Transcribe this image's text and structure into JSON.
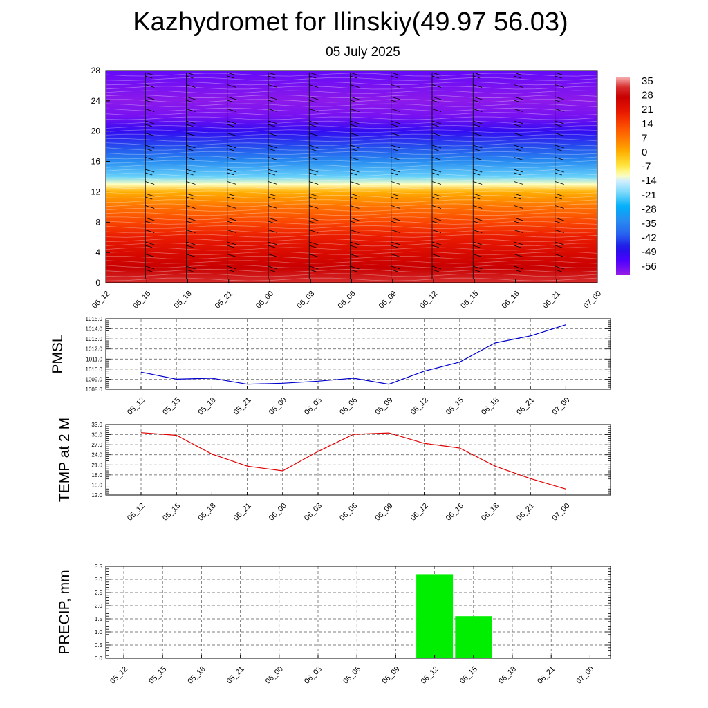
{
  "title": "Kazhydromet for Ilinskiy(49.97 56.03)",
  "subtitle": "05 July 2025",
  "time_labels": [
    "05_12",
    "05_15",
    "05_18",
    "05_21",
    "06_00",
    "06_03",
    "06_06",
    "06_09",
    "06_12",
    "06_15",
    "06_18",
    "06_21",
    "07_00"
  ],
  "colors": {
    "pmsl_line": "#0000cc",
    "temp_line": "#e00000",
    "precip_bar": "#00ee00",
    "grid": "#555555"
  },
  "chart_data": [
    {
      "id": "cross_section",
      "type": "heatmap",
      "title": "",
      "x": [
        "05_12",
        "05_15",
        "05_18",
        "05_21",
        "06_00",
        "06_03",
        "06_06",
        "06_09",
        "06_12",
        "06_15",
        "06_18",
        "06_21",
        "07_00"
      ],
      "yticks": [
        "0",
        "4",
        "8",
        "12",
        "16",
        "20",
        "24",
        "28"
      ],
      "ylim": [
        0,
        28
      ],
      "colorbar": {
        "labels": [
          "35",
          "28",
          "21",
          "14",
          "7",
          "0",
          "-7",
          "-14",
          "-21",
          "-28",
          "-35",
          "-42",
          "-49",
          "-56"
        ],
        "range": [
          -63,
          38
        ]
      },
      "temperature_profile": [
        {
          "y": 0,
          "value": 33
        },
        {
          "y": 2,
          "value": 28
        },
        {
          "y": 4,
          "value": 24
        },
        {
          "y": 6,
          "value": 20
        },
        {
          "y": 8,
          "value": 14
        },
        {
          "y": 10,
          "value": 8
        },
        {
          "y": 12,
          "value": 0
        },
        {
          "y": 13,
          "value": -12
        },
        {
          "y": 14,
          "value": -22
        },
        {
          "y": 16,
          "value": -35
        },
        {
          "y": 18,
          "value": -44
        },
        {
          "y": 20,
          "value": -52
        },
        {
          "y": 22,
          "value": -60
        },
        {
          "y": 24,
          "value": -62
        },
        {
          "y": 26,
          "value": -60
        },
        {
          "y": 28,
          "value": -58
        }
      ],
      "wind_barbs": "shown"
    },
    {
      "id": "pmsl",
      "type": "line",
      "ylabel": "PMSL",
      "x": [
        "05_12",
        "05_15",
        "05_18",
        "05_21",
        "06_00",
        "06_03",
        "06_06",
        "06_09",
        "06_12",
        "06_15",
        "06_18",
        "06_21",
        "07_00"
      ],
      "yticks": [
        "1008.0",
        "1009.0",
        "1010.0",
        "1011.0",
        "1012.0",
        "1013.0",
        "1014.0",
        "1015.0"
      ],
      "ylim": [
        1008.0,
        1015.0
      ],
      "grid": true,
      "series": [
        {
          "values": [
            1009.7,
            1009.0,
            1009.1,
            1008.5,
            1008.6,
            1008.8,
            1009.1,
            1008.5,
            1009.8,
            1010.7,
            1012.6,
            1013.3,
            1014.4
          ]
        }
      ]
    },
    {
      "id": "temp2m",
      "type": "line",
      "ylabel": "TEMP at 2 M",
      "x": [
        "05_12",
        "05_15",
        "05_18",
        "05_21",
        "06_00",
        "06_03",
        "06_06",
        "06_09",
        "06_12",
        "06_15",
        "06_18",
        "06_21",
        "07_00"
      ],
      "yticks": [
        "12.0",
        "15.0",
        "18.0",
        "21.0",
        "24.0",
        "27.0",
        "30.0",
        "33.0"
      ],
      "ylim": [
        12.0,
        33.0
      ],
      "grid": true,
      "series": [
        {
          "values": [
            30.6,
            29.8,
            24.2,
            20.6,
            19.2,
            25.0,
            30.1,
            30.5,
            27.4,
            26.0,
            20.6,
            16.9,
            13.8
          ]
        }
      ]
    },
    {
      "id": "precip",
      "type": "bar",
      "ylabel": "PRECIP, mm",
      "categories": [
        "05_12",
        "05_15",
        "05_18",
        "05_21",
        "06_00",
        "06_03",
        "06_06",
        "06_09",
        "06_12",
        "06_15",
        "06_18",
        "06_21",
        "07_00"
      ],
      "yticks": [
        "0.0",
        "0.5",
        "1.0",
        "1.5",
        "2.0",
        "2.5",
        "3.0",
        "3.5"
      ],
      "ylim": [
        0.0,
        3.5
      ],
      "grid": true,
      "values": [
        0,
        0,
        0,
        0,
        0,
        0,
        0,
        0,
        3.2,
        1.6,
        0,
        0,
        0
      ]
    }
  ]
}
